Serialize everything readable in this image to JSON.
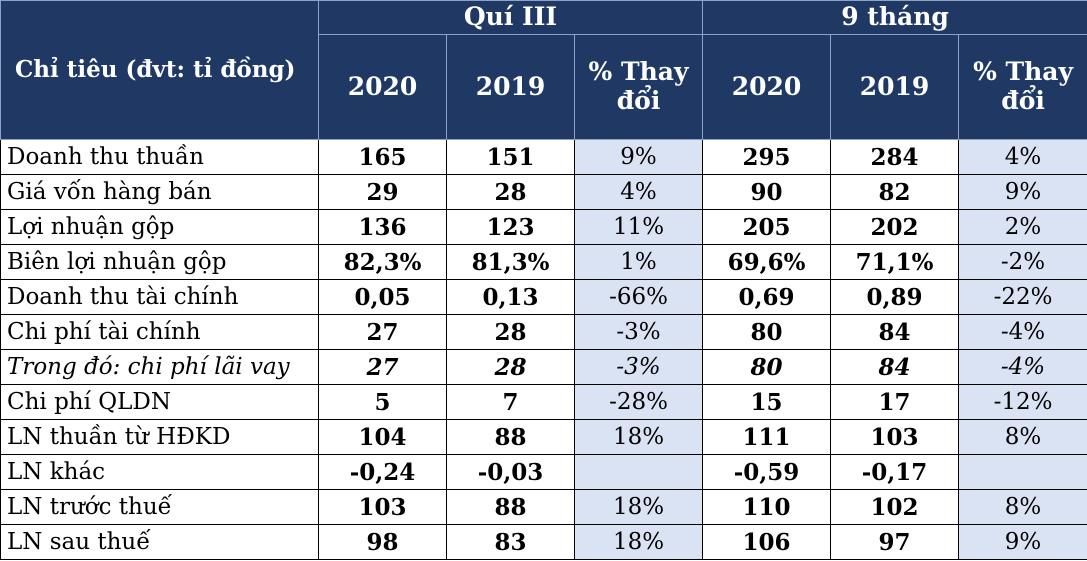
{
  "header": {
    "group_q3": "Quí III",
    "group_9m": "9 tháng",
    "row_label": "Chỉ tiêu (đvt: tỉ đồng)",
    "year_2020": "2020",
    "year_2019": "2019",
    "pct_change": "% Thay đổi"
  },
  "colors": {
    "header_bg": "#1f3864",
    "pct_bg": "#dae3f3"
  },
  "rows": [
    {
      "name": "Doanh thu thuần",
      "q3_2020": "165",
      "q3_2019": "151",
      "q3_pct": "9%",
      "m9_2020": "295",
      "m9_2019": "284",
      "m9_pct": "4%"
    },
    {
      "name": "Giá vốn hàng bán",
      "q3_2020": "29",
      "q3_2019": "28",
      "q3_pct": "4%",
      "m9_2020": "90",
      "m9_2019": "82",
      "m9_pct": "9%"
    },
    {
      "name": "Lợi nhuận gộp",
      "q3_2020": "136",
      "q3_2019": "123",
      "q3_pct": "11%",
      "m9_2020": "205",
      "m9_2019": "202",
      "m9_pct": "2%"
    },
    {
      "name": "Biên lợi nhuận gộp",
      "q3_2020": "82,3%",
      "q3_2019": "81,3%",
      "q3_pct": "1%",
      "m9_2020": "69,6%",
      "m9_2019": "71,1%",
      "m9_pct": "-2%"
    },
    {
      "name": "Doanh thu tài chính",
      "q3_2020": "0,05",
      "q3_2019": "0,13",
      "q3_pct": "-66%",
      "m9_2020": "0,69",
      "m9_2019": "0,89",
      "m9_pct": "-22%"
    },
    {
      "name": "Chi phí tài chính",
      "q3_2020": "27",
      "q3_2019": "28",
      "q3_pct": "-3%",
      "m9_2020": "80",
      "m9_2019": "84",
      "m9_pct": "-4%"
    },
    {
      "name": "Trong đó: chi phí lãi vay",
      "q3_2020": "27",
      "q3_2019": "28",
      "q3_pct": "-3%",
      "m9_2020": "80",
      "m9_2019": "84",
      "m9_pct": "-4%"
    },
    {
      "name": "Chi phí QLDN",
      "q3_2020": "5",
      "q3_2019": "7",
      "q3_pct": "-28%",
      "m9_2020": "15",
      "m9_2019": "17",
      "m9_pct": "-12%"
    },
    {
      "name": "LN thuần từ HĐKD",
      "q3_2020": "104",
      "q3_2019": "88",
      "q3_pct": "18%",
      "m9_2020": "111",
      "m9_2019": "103",
      "m9_pct": "8%"
    },
    {
      "name": "LN khác",
      "q3_2020": "-0,24",
      "q3_2019": "-0,03",
      "q3_pct": "",
      "m9_2020": "-0,59",
      "m9_2019": "-0,17",
      "m9_pct": ""
    },
    {
      "name": "LN trước thuế",
      "q3_2020": "103",
      "q3_2019": "88",
      "q3_pct": "18%",
      "m9_2020": "110",
      "m9_2019": "102",
      "m9_pct": "8%"
    },
    {
      "name": "LN sau thuế",
      "q3_2020": "98",
      "q3_2019": "83",
      "q3_pct": "18%",
      "m9_2020": "106",
      "m9_2019": "97",
      "m9_pct": "9%"
    }
  ]
}
